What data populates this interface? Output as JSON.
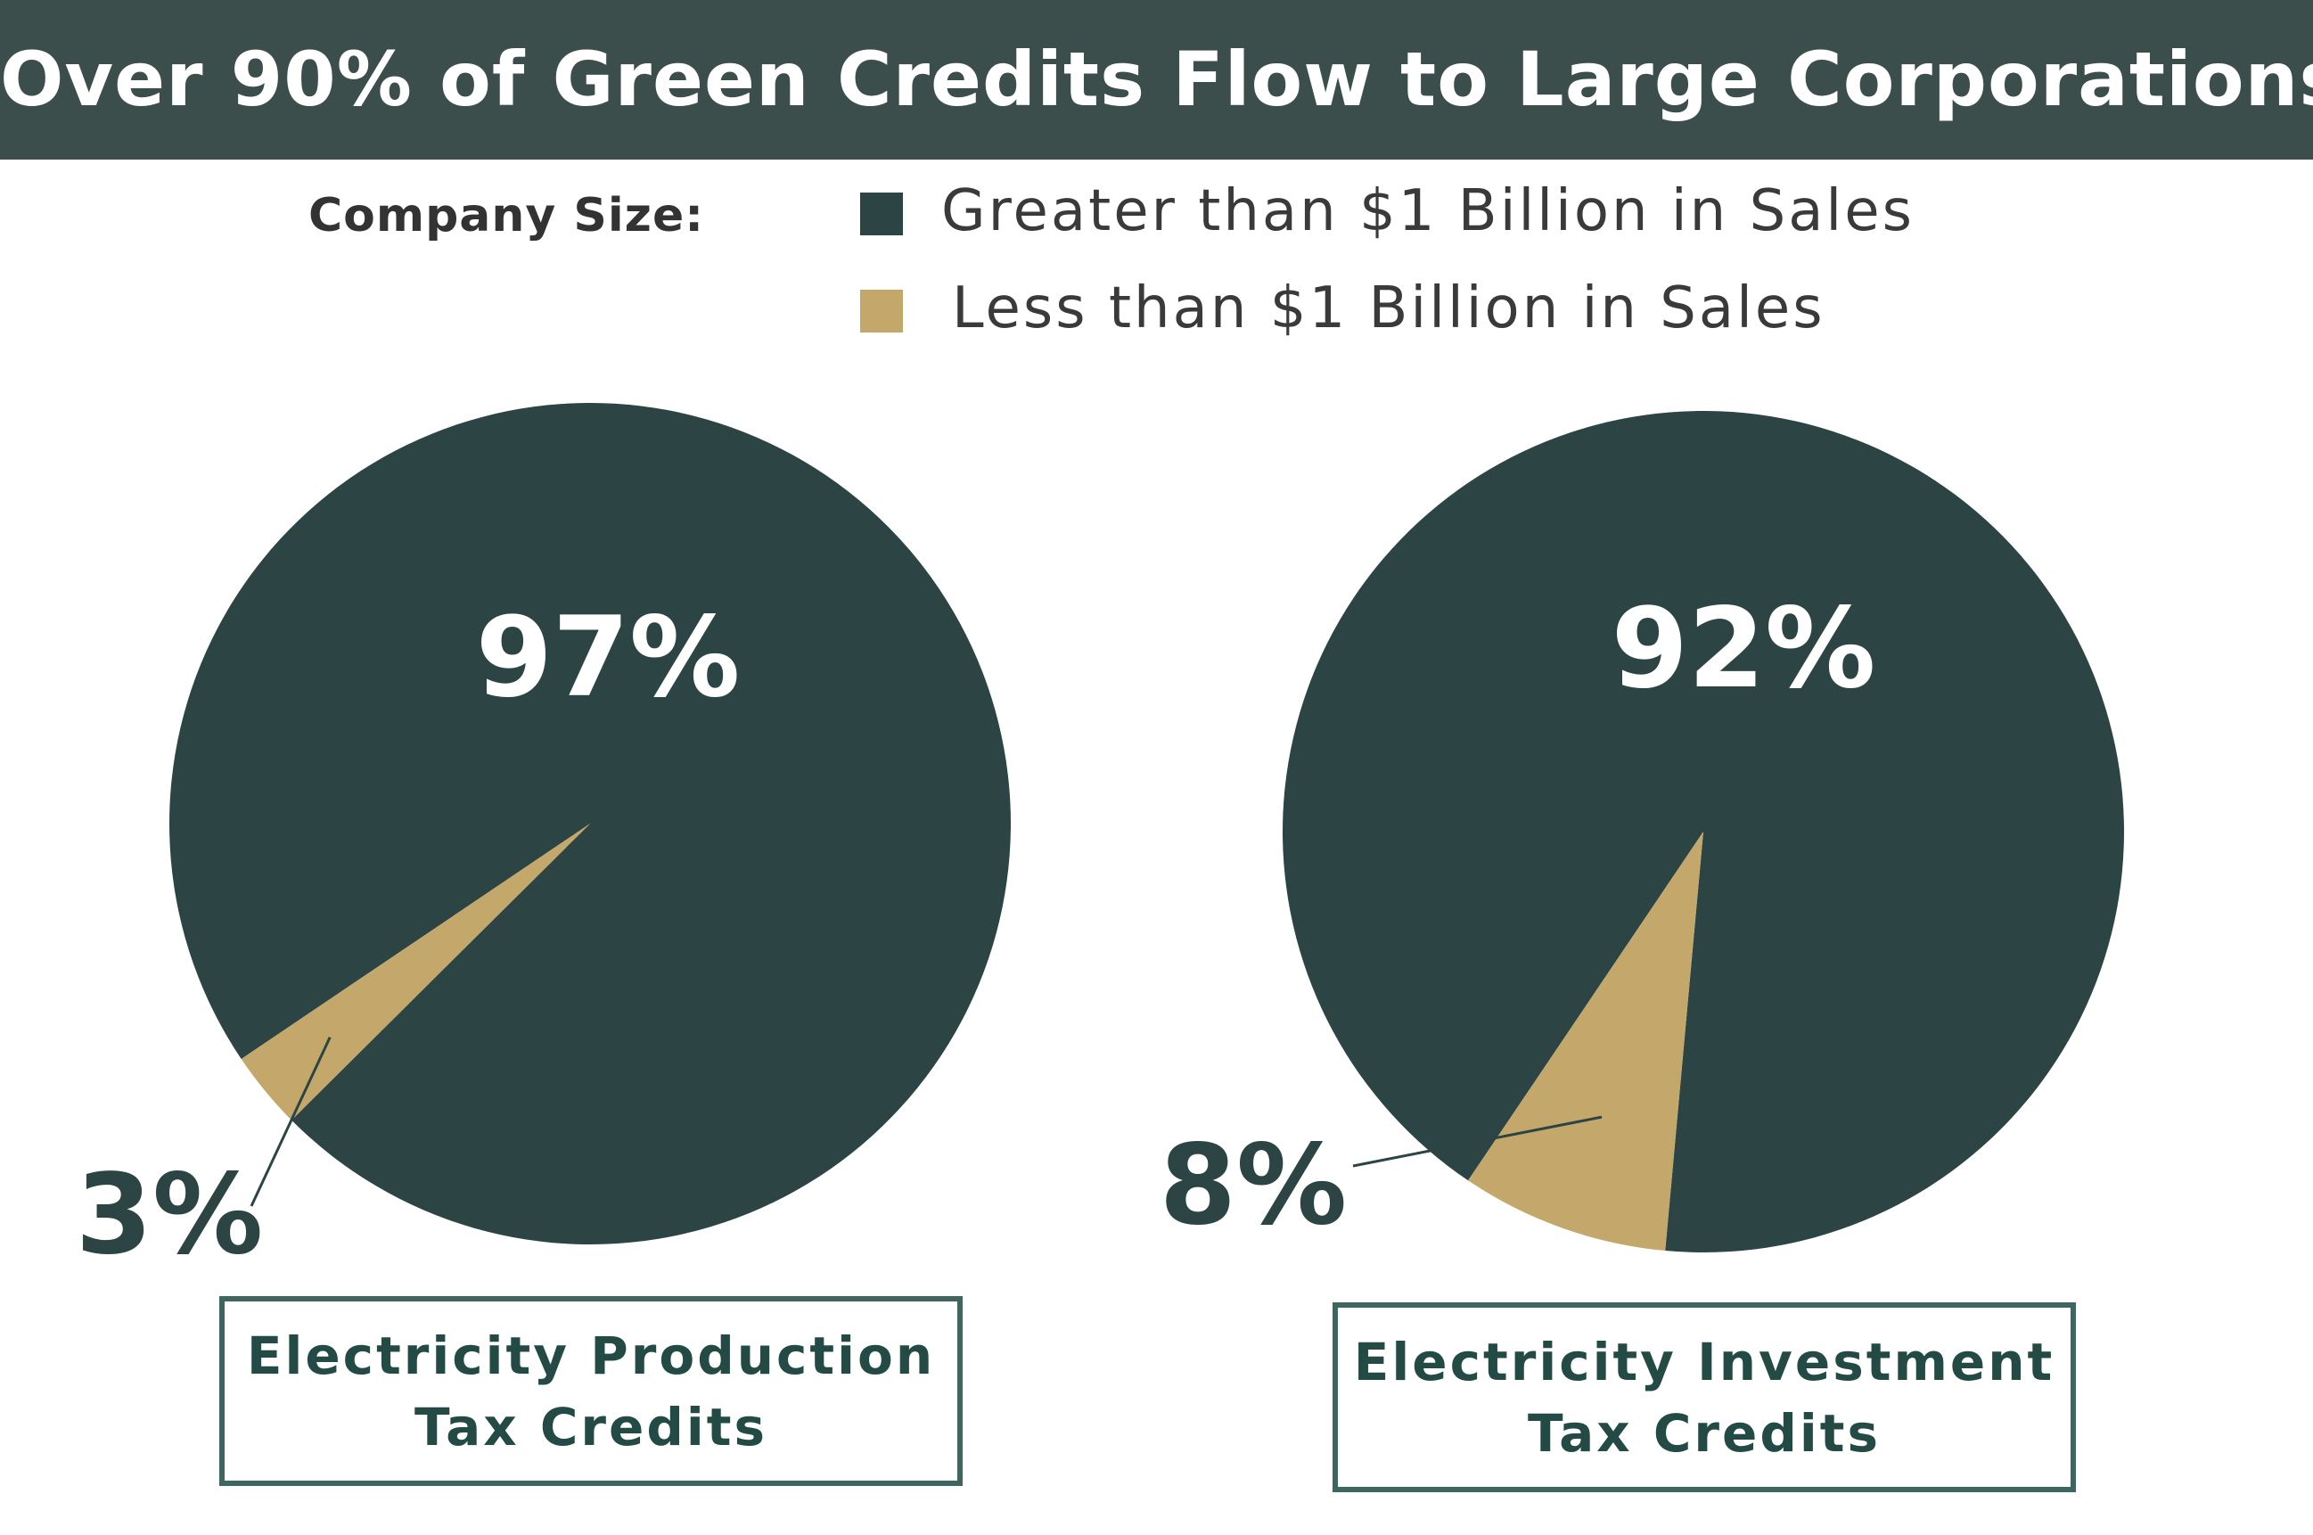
{
  "title": "Over 90% of Green Credits Flow to Large Corporations",
  "legend": {
    "heading": "Company Size:",
    "items": [
      {
        "label": "Greater than $1 Billion in Sales",
        "color": "#2c4443"
      },
      {
        "label": "Less than $1 Billion in Sales",
        "color": "#c4a86b"
      }
    ]
  },
  "chart_data": [
    {
      "type": "pie",
      "caption": "Electricity Production\nTax Credits",
      "slices": [
        {
          "series": "Greater than $1 Billion in Sales",
          "value": 97,
          "label": "97%",
          "color": "#2c4443"
        },
        {
          "series": "Less than $1 Billion in Sales",
          "value": 3,
          "label": "3%",
          "color": "#c4a86b"
        }
      ]
    },
    {
      "type": "pie",
      "caption": "Electricity Investment\nTax Credits",
      "slices": [
        {
          "series": "Greater than $1 Billion in Sales",
          "value": 92,
          "label": "92%",
          "color": "#2c4443"
        },
        {
          "series": "Less than $1 Billion in Sales",
          "value": 8,
          "label": "8%",
          "color": "#c4a86b"
        }
      ]
    }
  ]
}
